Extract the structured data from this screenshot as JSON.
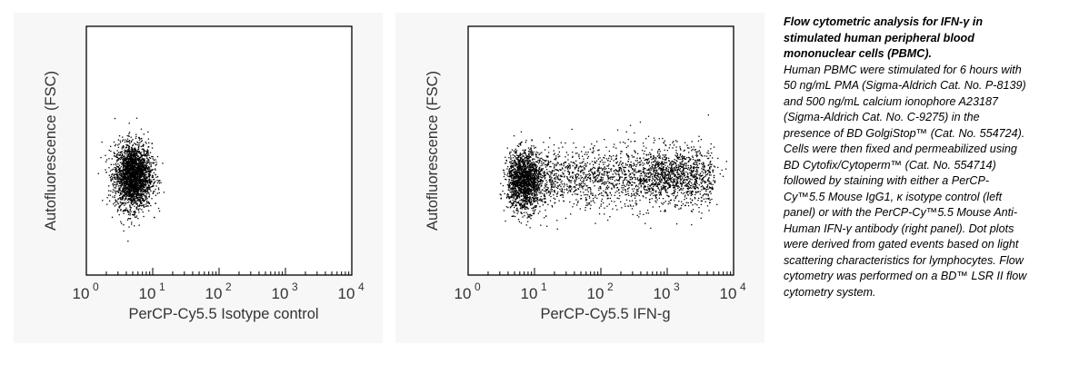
{
  "chart_data": [
    {
      "type": "scatter",
      "xlabel": "PerCP-Cy5.5 Isotype control",
      "ylabel": "Autofluorescence (FSC)",
      "x_scale": "log",
      "xlim": [
        1,
        10000
      ],
      "x_ticks": [
        {
          "base": "10",
          "exp": "0",
          "value": 1
        },
        {
          "base": "10",
          "exp": "1",
          "value": 10
        },
        {
          "base": "10",
          "exp": "2",
          "value": 100
        },
        {
          "base": "10",
          "exp": "3",
          "value": 1000
        },
        {
          "base": "10",
          "exp": "4",
          "value": 10000
        }
      ],
      "y_axis_ticks": false,
      "populations": [
        {
          "center_x": 5,
          "center_y": 0.4,
          "sigma_logx": 0.14,
          "sigma_y": 0.065,
          "count": 2600
        }
      ],
      "point_color": "#000000"
    },
    {
      "type": "scatter",
      "xlabel": "PerCP-Cy5.5 IFN-g",
      "ylabel": "Autofluorescence (FSC)",
      "x_scale": "log",
      "xlim": [
        1,
        10000
      ],
      "x_ticks": [
        {
          "base": "10",
          "exp": "0",
          "value": 1
        },
        {
          "base": "10",
          "exp": "1",
          "value": 10
        },
        {
          "base": "10",
          "exp": "2",
          "value": 100
        },
        {
          "base": "10",
          "exp": "3",
          "value": 1000
        },
        {
          "base": "10",
          "exp": "4",
          "value": 10000
        }
      ],
      "y_axis_ticks": false,
      "populations": [
        {
          "center_x": 7,
          "center_y": 0.38,
          "sigma_logx": 0.13,
          "sigma_y": 0.06,
          "count": 1500
        },
        {
          "x_range": [
            4,
            5000
          ],
          "center_y": 0.39,
          "sigma_y": 0.06,
          "count": 1900
        },
        {
          "center_x": 1000,
          "center_y": 0.41,
          "sigma_logx": 0.32,
          "sigma_y": 0.055,
          "count": 700
        }
      ],
      "point_color": "#000000"
    }
  ],
  "caption": {
    "title": "Flow cytometric analysis for IFN-γ in stimulated human peripheral blood mononuclear cells (PBMC).",
    "body": "Human PBMC were stimulated for 6 hours with 50 ng/mL PMA (Sigma-Aldrich Cat. No. P-8139) and 500 ng/mL calcium ionophore A23187 (Sigma-Aldrich Cat. No. C-9275) in the presence of BD GolgiStop™ (Cat. No. 554724).  Cells were then fixed and permeabilized using BD Cytofix/Cytoperm™ (Cat. No. 554714) followed by staining with either a PerCP-Cy™5.5 Mouse IgG1, κ isotype control (left panel) or with the PerCP-Cy™5.5 Mouse Anti-Human IFN-γ antibody (right panel).  Dot plots were derived from gated events based on light scattering characteristics for lymphocytes.  Flow cytometry was performed on a BD™ LSR II flow cytometry system."
  }
}
